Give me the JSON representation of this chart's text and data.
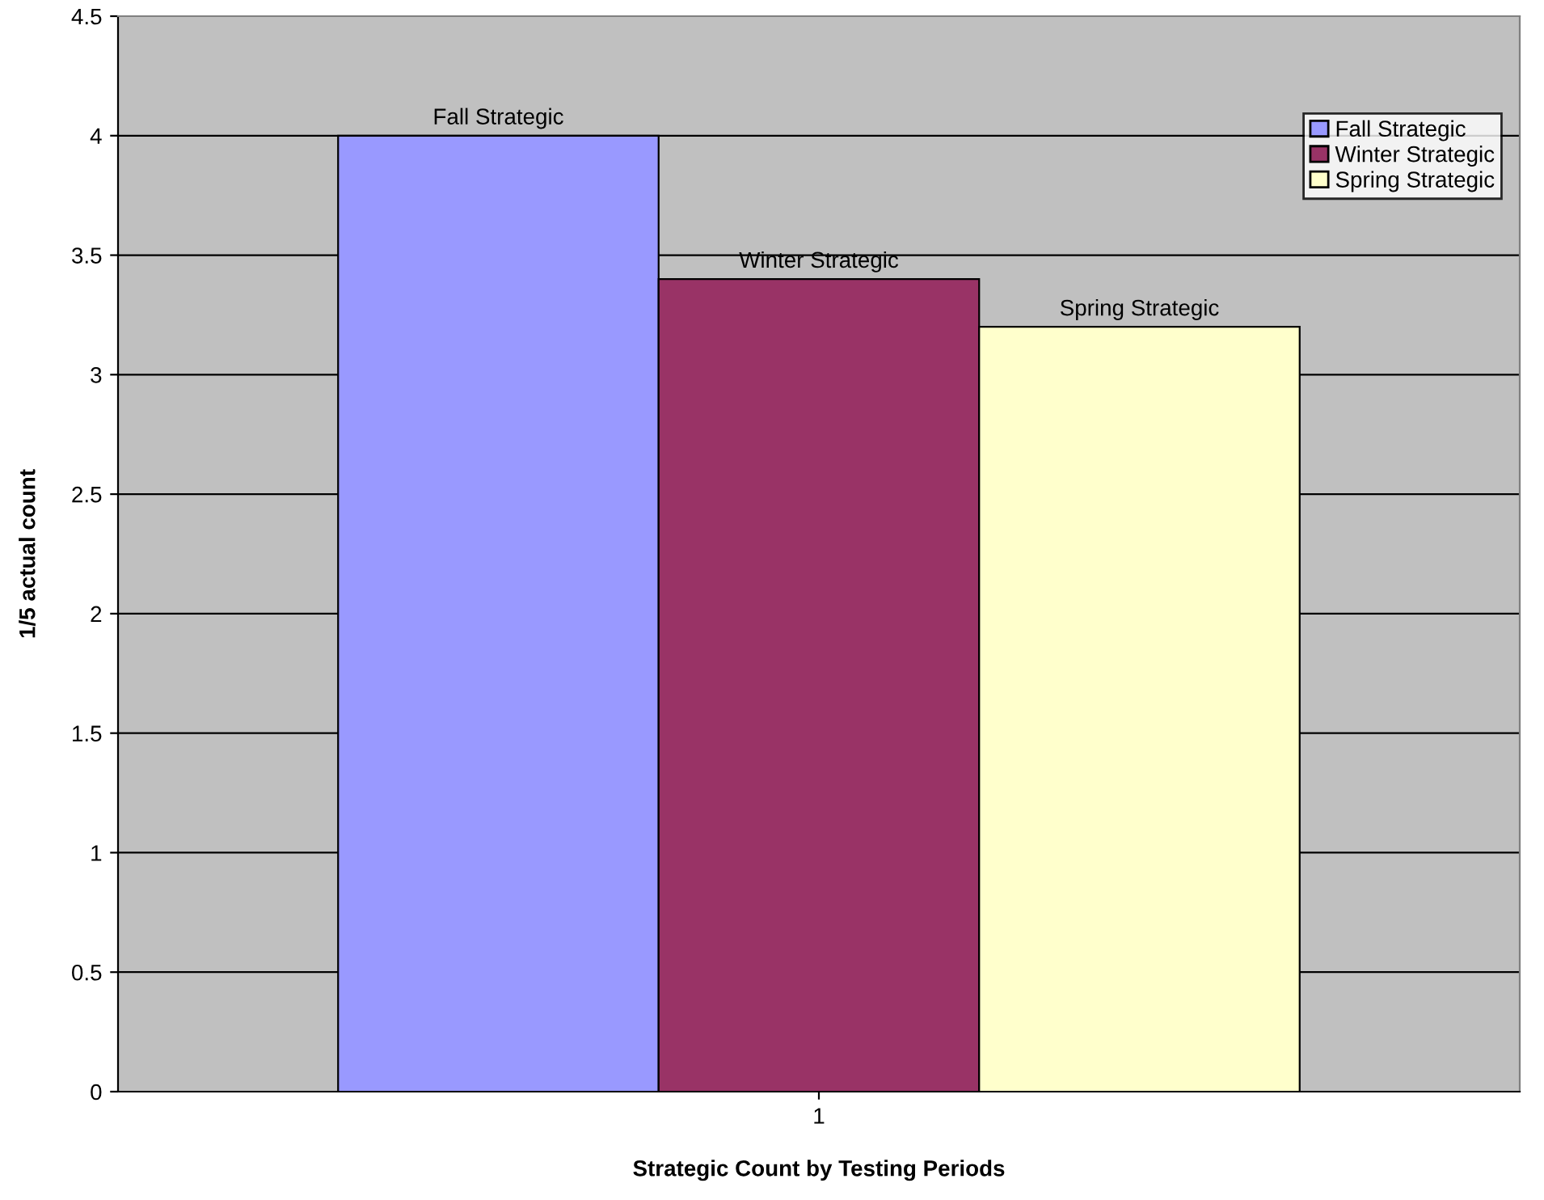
{
  "chart_data": {
    "type": "bar",
    "xlabel": "Strategic Count by Testing Periods",
    "ylabel": "1/5 actual count",
    "categories": [
      "1"
    ],
    "series": [
      {
        "name": "Fall Strategic",
        "color": "#9999ff",
        "values": [
          4
        ]
      },
      {
        "name": "Winter Strategic",
        "color": "#993366",
        "values": [
          3.4
        ]
      },
      {
        "name": "Spring Strategic",
        "color": "#ffffcc",
        "values": [
          3.2
        ]
      }
    ],
    "ylim": [
      0,
      4.5
    ],
    "yticks": [
      0,
      0.5,
      1,
      1.5,
      2,
      2.5,
      3,
      3.5,
      4,
      4.5
    ],
    "grid": "y",
    "legend": "top right"
  }
}
